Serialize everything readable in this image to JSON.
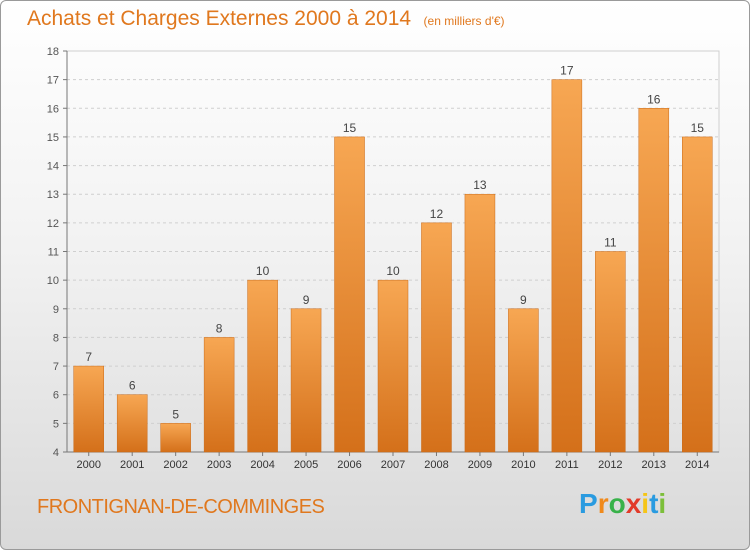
{
  "title": "Achats et Charges Externes 2000 à 2014",
  "unit_note": "(en milliers d'€)",
  "commune": "FRONTIGNAN-DE-COMMINGES",
  "logo": {
    "letters": [
      "P",
      "r",
      "o",
      "x",
      "i",
      "t",
      "i"
    ],
    "colors": [
      "#2a9be0",
      "#f08a1c",
      "#38b24a",
      "#e23b2a",
      "#f5c518",
      "#2a9be0",
      "#7cbf3a"
    ]
  },
  "chart_data": {
    "type": "bar",
    "categories": [
      "2000",
      "2001",
      "2002",
      "2003",
      "2004",
      "2005",
      "2006",
      "2007",
      "2008",
      "2009",
      "2010",
      "2011",
      "2012",
      "2013",
      "2014"
    ],
    "values": [
      7,
      6,
      5,
      8,
      10,
      9,
      15,
      10,
      12,
      13,
      9,
      17,
      11,
      16,
      15
    ],
    "ylim": [
      4,
      18
    ],
    "yticks": [
      4,
      5,
      6,
      7,
      8,
      9,
      10,
      11,
      12,
      13,
      14,
      15,
      16,
      17,
      18
    ],
    "grid": true,
    "bar_color_top": "#f7a753",
    "bar_color_bottom": "#d4701a",
    "title": "Achats et Charges Externes 2000 à 2014"
  }
}
